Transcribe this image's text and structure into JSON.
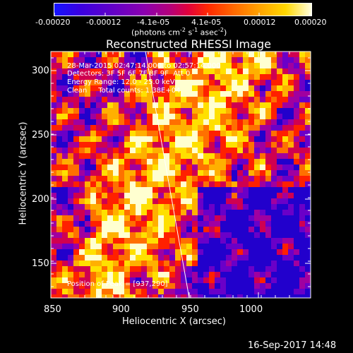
{
  "colorbar": {
    "ticks": [
      "-0.00020",
      "-0.00012",
      "-4.1e-05",
      "4.1e-05",
      "0.00012",
      "0.00020"
    ],
    "units_prefix": "(photons cm",
    "units_exp1": "-2",
    "units_mid": " s",
    "units_exp2": "-1",
    "units_mid2": " asec",
    "units_exp3": "-2",
    "units_suffix": ")",
    "colors": [
      "#1010ff",
      "#2200cc",
      "#6a00c8",
      "#a000a0",
      "#d00050",
      "#ff2000",
      "#ff7000",
      "#ffb000",
      "#ffe000",
      "#ffffd0"
    ]
  },
  "title": "Reconstructed RHESSI Image",
  "info": {
    "line1": "28-Mar-2015 02:47:14.000 to 02:57:14.000",
    "line2": "Detectors: 3F 5F 6F 7F 8F 9F  Att 0",
    "line3": "Energy Range: 12.0 - 25.0 keV",
    "line4": "Clean     Total counts: 1.38E+04",
    "peak": "Position of Peak = [937,290]"
  },
  "axes": {
    "xlabel": "Heliocentric X (arcsec)",
    "ylabel": "Heliocentric Y (arcsec)",
    "xticks": [
      "850",
      "900",
      "950",
      "1000"
    ],
    "yticks": [
      "300",
      "250",
      "200",
      "150"
    ]
  },
  "footer": "16-Sep-2017 14:48"
}
